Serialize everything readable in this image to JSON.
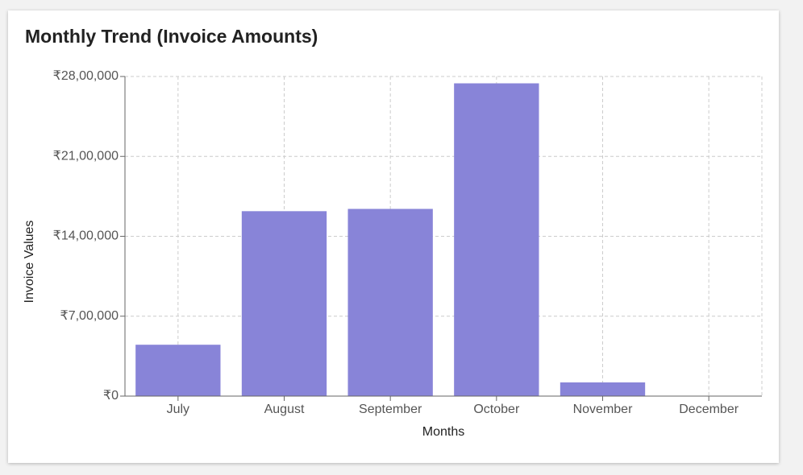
{
  "chart_data": {
    "type": "bar",
    "title": "Monthly Trend (Invoice Amounts)",
    "x_label": "Months",
    "y_label": "Invoice Values",
    "categories": [
      "July",
      "August",
      "September",
      "October",
      "November",
      "December"
    ],
    "values": [
      450000,
      1620000,
      1640000,
      2740000,
      120000,
      0
    ],
    "color": "#8884d8",
    "ylim": [
      0,
      2800000
    ],
    "yticks": [
      {
        "value": 0,
        "label": "₹0"
      },
      {
        "value": 700000,
        "label": "₹7,00,000"
      },
      {
        "value": 1400000,
        "label": "₹14,00,000"
      },
      {
        "value": 2100000,
        "label": "₹21,00,000"
      },
      {
        "value": 2800000,
        "label": "₹28,00,000"
      }
    ],
    "grid": true
  }
}
